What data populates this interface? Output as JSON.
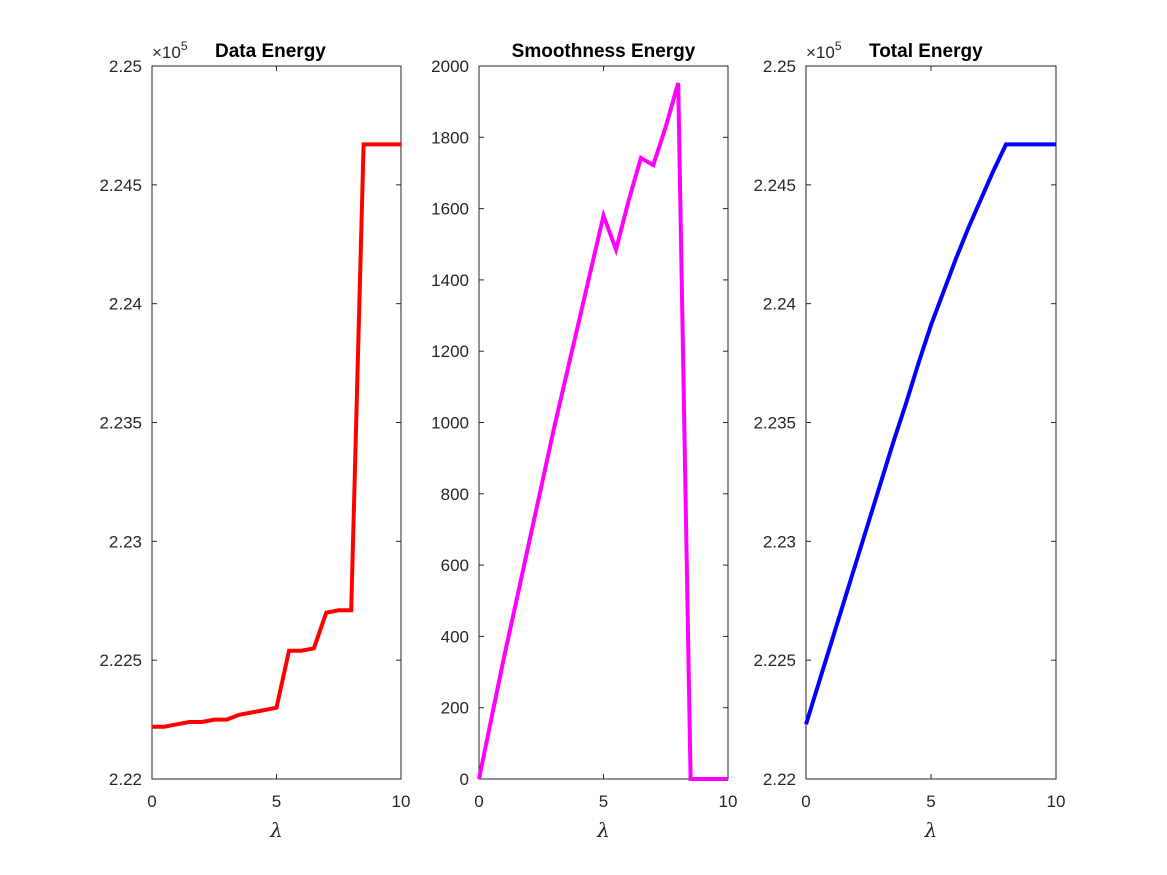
{
  "colors": {
    "axis": "#262626",
    "series": [
      "#ff0000",
      "#ff00ff",
      "#0000ff"
    ]
  },
  "chart_data": [
    {
      "type": "line",
      "title": "Data Energy",
      "xlabel": "λ",
      "ylabel": "",
      "y_exponent_label": "×10",
      "y_exponent": "5",
      "xlim": [
        0,
        10
      ],
      "ylim": [
        2.22,
        2.25
      ],
      "xticks": [
        "0",
        "5",
        "10"
      ],
      "xtick_values": [
        0,
        5,
        10
      ],
      "yticks": [
        "2.22",
        "2.225",
        "2.23",
        "2.235",
        "2.24",
        "2.245",
        "2.25"
      ],
      "ytick_values": [
        2.22,
        2.225,
        2.23,
        2.235,
        2.24,
        2.245,
        2.25
      ],
      "grid": false,
      "series": [
        {
          "color": "#ff0000",
          "x": [
            0,
            0.5,
            1,
            1.5,
            2,
            2.5,
            3,
            3.5,
            4,
            4.5,
            5,
            5.5,
            6,
            6.5,
            7,
            7.5,
            8,
            8.5,
            9,
            9.5,
            10
          ],
          "y": [
            2.2222,
            2.2222,
            2.2223,
            2.2224,
            2.2224,
            2.2225,
            2.2225,
            2.2227,
            2.2228,
            2.2229,
            2.223,
            2.2254,
            2.2254,
            2.2255,
            2.227,
            2.2271,
            2.2271,
            2.2467,
            2.2467,
            2.2467,
            2.2467
          ]
        }
      ]
    },
    {
      "type": "line",
      "title": "Smoothness Energy",
      "xlabel": "λ",
      "ylabel": "",
      "y_exponent_label": "",
      "y_exponent": "",
      "xlim": [
        0,
        10
      ],
      "ylim": [
        0,
        2000
      ],
      "xticks": [
        "0",
        "5",
        "10"
      ],
      "xtick_values": [
        0,
        5,
        10
      ],
      "yticks": [
        "0",
        "200",
        "400",
        "600",
        "800",
        "1000",
        "1200",
        "1400",
        "1600",
        "1800",
        "2000"
      ],
      "ytick_values": [
        0,
        200,
        400,
        600,
        800,
        1000,
        1200,
        1400,
        1600,
        1800,
        2000
      ],
      "grid": false,
      "series": [
        {
          "color": "#ff00ff",
          "x": [
            0,
            0.5,
            1,
            1.5,
            2,
            2.5,
            3,
            3.5,
            4,
            4.5,
            5,
            5.5,
            6,
            6.5,
            7,
            7.5,
            8,
            8.5,
            9,
            9.5,
            10
          ],
          "y": [
            0,
            170,
            340,
            500,
            660,
            820,
            980,
            1130,
            1280,
            1430,
            1580,
            1485,
            1620,
            1742,
            1722,
            1830,
            1952,
            0,
            0,
            0,
            0
          ]
        }
      ]
    },
    {
      "type": "line",
      "title": "Total Energy",
      "xlabel": "λ",
      "ylabel": "",
      "y_exponent_label": "×10",
      "y_exponent": "5",
      "xlim": [
        0,
        10
      ],
      "ylim": [
        2.22,
        2.25
      ],
      "xticks": [
        "0",
        "5",
        "10"
      ],
      "xtick_values": [
        0,
        5,
        10
      ],
      "yticks": [
        "2.22",
        "2.225",
        "2.23",
        "2.235",
        "2.24",
        "2.245",
        "2.25"
      ],
      "ytick_values": [
        2.22,
        2.225,
        2.23,
        2.235,
        2.24,
        2.245,
        2.25
      ],
      "grid": false,
      "series": [
        {
          "color": "#0000ff",
          "x": [
            0,
            0.5,
            1,
            1.5,
            2,
            2.5,
            3,
            3.5,
            4,
            4.5,
            5,
            5.5,
            6,
            6.5,
            7,
            7.5,
            8,
            8.5,
            9,
            9.5,
            10
          ],
          "y": [
            2.2223,
            2.224,
            2.2257,
            2.2274,
            2.2291,
            2.2308,
            2.2325,
            2.2342,
            2.2358,
            2.2375,
            2.2391,
            2.2405,
            2.2419,
            2.2432,
            2.2444,
            2.2456,
            2.2467,
            2.2467,
            2.2467,
            2.2467,
            2.2467
          ]
        }
      ]
    }
  ]
}
